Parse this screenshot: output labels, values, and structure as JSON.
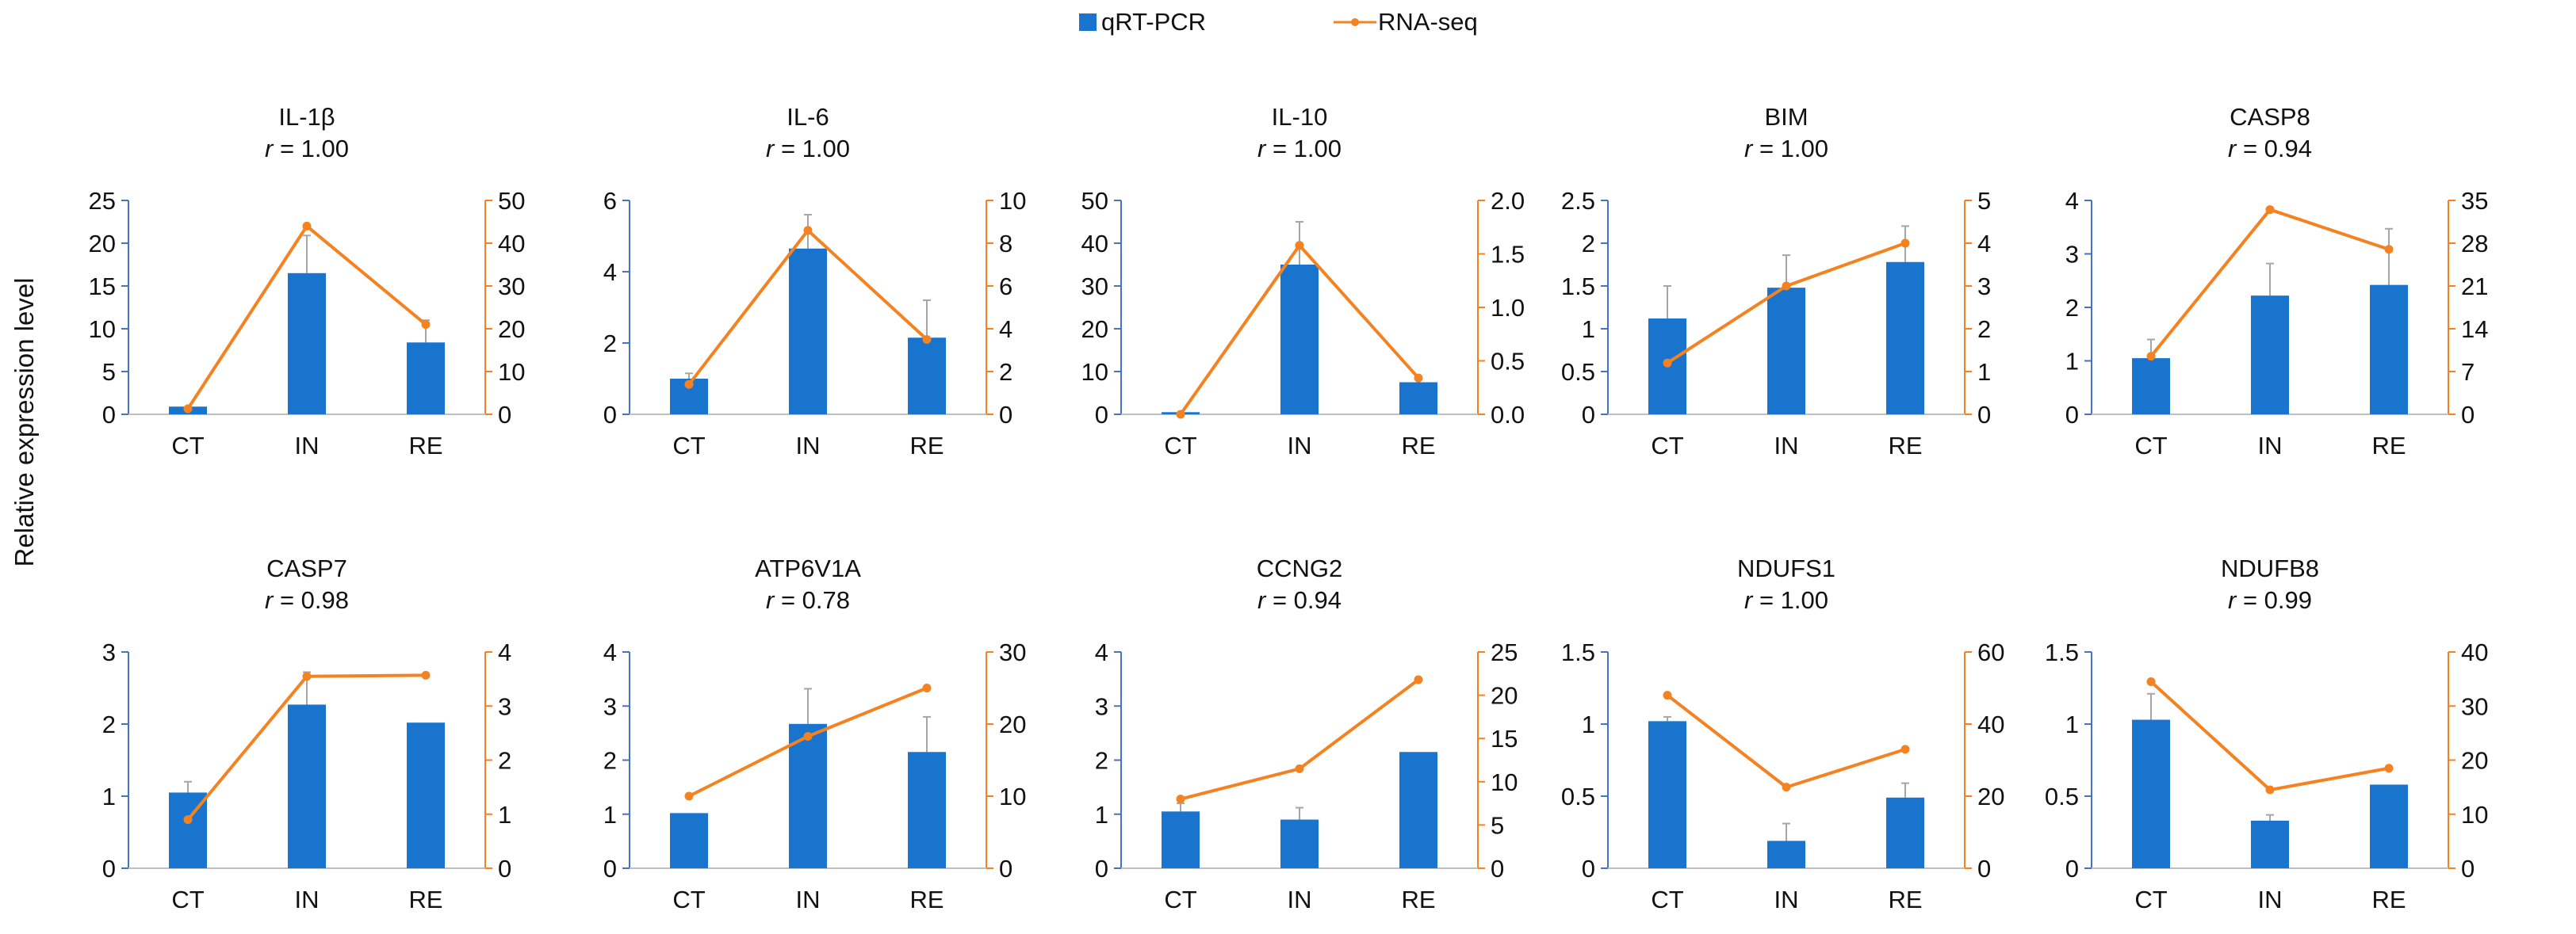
{
  "legend": {
    "bar_label": "qRT-PCR",
    "line_label": "RNA-seq"
  },
  "ylabel": "Relative expression level",
  "colors": {
    "bar": "#1874CD",
    "line": "#F58220",
    "axis_left": "#4472C4",
    "axis_right": "#F58220",
    "error": "#A6A6A6"
  },
  "chart_data": [
    {
      "type": "bar+line",
      "gene": "IL-1β",
      "r_label": "r",
      "r_value": "= 1.00",
      "categories": [
        "CT",
        "IN",
        "RE"
      ],
      "bar_values": [
        0.9,
        16.5,
        8.4
      ],
      "bar_errors": [
        0,
        4.4,
        2.6
      ],
      "left_ticks": [
        "0",
        "5",
        "10",
        "15",
        "20",
        "25"
      ],
      "left_range": [
        0,
        25
      ],
      "line_values": [
        1.3,
        44,
        21
      ],
      "right_ticks": [
        "0",
        "10",
        "20",
        "30",
        "40",
        "50"
      ],
      "right_range": [
        0,
        50
      ]
    },
    {
      "type": "bar+line",
      "gene": "IL-6",
      "r_label": "r",
      "r_value": "= 1.00",
      "categories": [
        "CT",
        "IN",
        "RE"
      ],
      "bar_values": [
        1.0,
        4.65,
        2.15
      ],
      "bar_errors": [
        0.15,
        0.95,
        1.05
      ],
      "left_ticks": [
        "0",
        "2",
        "4",
        "6"
      ],
      "left_range": [
        0,
        6
      ],
      "line_values": [
        1.4,
        8.6,
        3.5
      ],
      "right_ticks": [
        "0",
        "2",
        "4",
        "6",
        "8",
        "10"
      ],
      "right_range": [
        0,
        10
      ]
    },
    {
      "type": "bar+line",
      "gene": "IL-10",
      "r_label": "r",
      "r_value": "= 1.00",
      "categories": [
        "CT",
        "IN",
        "RE"
      ],
      "bar_values": [
        0.5,
        35.0,
        7.5
      ],
      "bar_errors": [
        0,
        10.0,
        0.8
      ],
      "left_ticks": [
        "0",
        "10",
        "20",
        "30",
        "40",
        "50"
      ],
      "left_range": [
        0,
        50
      ],
      "line_values": [
        0.0,
        1.58,
        0.34
      ],
      "right_ticks": [
        "0.0",
        "0.5",
        "1.0",
        "1.5",
        "2.0"
      ],
      "right_range": [
        0,
        2
      ]
    },
    {
      "type": "bar+line",
      "gene": "BIM",
      "r_label": "r",
      "r_value": "= 1.00",
      "categories": [
        "CT",
        "IN",
        "RE"
      ],
      "bar_values": [
        1.12,
        1.48,
        1.78
      ],
      "bar_errors": [
        0.38,
        0.38,
        0.42
      ],
      "left_ticks": [
        "0",
        "0.5",
        "1",
        "1.5",
        "2",
        "2.5"
      ],
      "left_range": [
        0,
        2.5
      ],
      "line_values": [
        1.2,
        3.0,
        4.0
      ],
      "right_ticks": [
        "0",
        "1",
        "2",
        "3",
        "4",
        "5"
      ],
      "right_range": [
        0,
        5
      ]
    },
    {
      "type": "bar+line",
      "gene": "CASP8",
      "r_label": "r",
      "r_value": "= 0.94",
      "categories": [
        "CT",
        "IN",
        "RE"
      ],
      "bar_values": [
        1.05,
        2.22,
        2.42
      ],
      "bar_errors": [
        0.35,
        0.6,
        1.05
      ],
      "left_ticks": [
        "0",
        "1",
        "2",
        "3",
        "4"
      ],
      "left_range": [
        0,
        4
      ],
      "line_values": [
        9.5,
        33.5,
        27.0
      ],
      "right_ticks": [
        "0",
        "7",
        "14",
        "21",
        "28",
        "35"
      ],
      "right_range": [
        0,
        35
      ]
    },
    {
      "type": "bar+line",
      "gene": "CASP7",
      "r_label": "r",
      "r_value": "= 0.98",
      "categories": [
        "CT",
        "IN",
        "RE"
      ],
      "bar_values": [
        1.05,
        2.27,
        2.02
      ],
      "bar_errors": [
        0.15,
        0.45,
        0
      ],
      "left_ticks": [
        "0",
        "1",
        "2",
        "3"
      ],
      "left_range": [
        0,
        3
      ],
      "line_values": [
        0.9,
        3.55,
        3.57
      ],
      "right_ticks": [
        "0",
        "1",
        "2",
        "3",
        "4"
      ],
      "right_range": [
        0,
        4
      ]
    },
    {
      "type": "bar+line",
      "gene": "ATP6V1A",
      "r_label": "r",
      "r_value": "= 0.78",
      "categories": [
        "CT",
        "IN",
        "RE"
      ],
      "bar_values": [
        1.02,
        2.67,
        2.15
      ],
      "bar_errors": [
        0,
        0.65,
        0.65
      ],
      "left_ticks": [
        "0",
        "1",
        "2",
        "3",
        "4"
      ],
      "left_range": [
        0,
        4
      ],
      "line_values": [
        10.0,
        18.3,
        25.0
      ],
      "right_ticks": [
        "0",
        "10",
        "20",
        "30"
      ],
      "right_range": [
        0,
        30
      ]
    },
    {
      "type": "bar+line",
      "gene": "CCNG2",
      "r_label": "r",
      "r_value": "= 0.94",
      "categories": [
        "CT",
        "IN",
        "RE"
      ],
      "bar_values": [
        1.05,
        0.9,
        2.15
      ],
      "bar_errors": [
        0.15,
        0.22,
        0
      ],
      "left_ticks": [
        "0",
        "1",
        "2",
        "3",
        "4"
      ],
      "left_range": [
        0,
        4
      ],
      "line_values": [
        8.0,
        11.5,
        21.8
      ],
      "right_ticks": [
        "0",
        "5",
        "10",
        "15",
        "20",
        "25"
      ],
      "right_range": [
        0,
        25
      ]
    },
    {
      "type": "bar+line",
      "gene": "NDUFS1",
      "r_label": "r",
      "r_value": "= 1.00",
      "categories": [
        "CT",
        "IN",
        "RE"
      ],
      "bar_values": [
        1.02,
        0.19,
        0.49
      ],
      "bar_errors": [
        0.03,
        0.12,
        0.1
      ],
      "left_ticks": [
        "0",
        "0.5",
        "1",
        "1.5"
      ],
      "left_range": [
        0,
        1.5
      ],
      "line_values": [
        48.0,
        22.5,
        33.0
      ],
      "right_ticks": [
        "0",
        "20",
        "40",
        "60"
      ],
      "right_range": [
        0,
        60
      ]
    },
    {
      "type": "bar+line",
      "gene": "NDUFB8",
      "r_label": "r",
      "r_value": "= 0.99",
      "categories": [
        "CT",
        "IN",
        "RE"
      ],
      "bar_values": [
        1.03,
        0.33,
        0.58
      ],
      "bar_errors": [
        0.18,
        0.04,
        0
      ],
      "left_ticks": [
        "0",
        "0.5",
        "1",
        "1.5"
      ],
      "left_range": [
        0,
        1.5
      ],
      "line_values": [
        34.5,
        14.5,
        18.5
      ],
      "right_ticks": [
        "0",
        "10",
        "20",
        "30",
        "40"
      ],
      "right_range": [
        0,
        40
      ]
    }
  ]
}
